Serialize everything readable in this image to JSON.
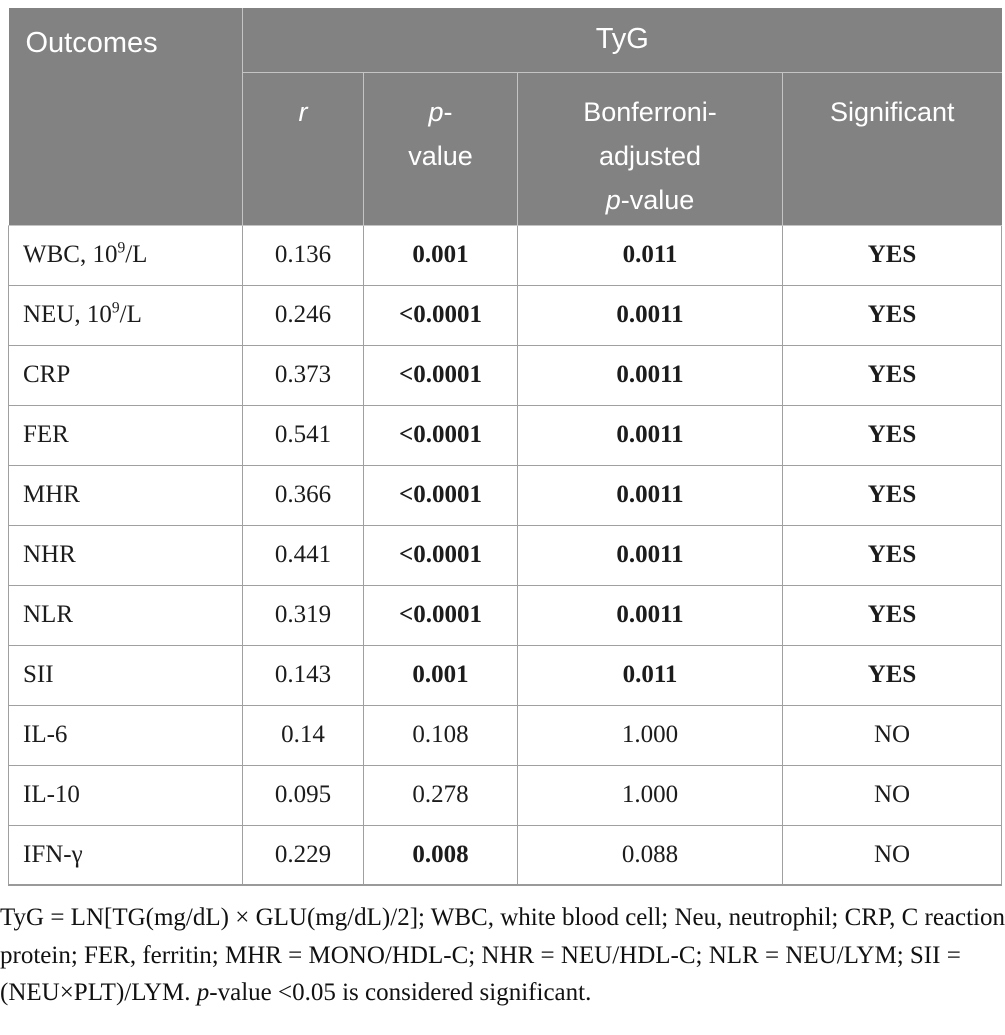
{
  "table": {
    "header": {
      "outcomes": "Outcomes",
      "group": "TyG",
      "r_label": "r",
      "p_line1_italic": "p",
      "p_line1_rest": "-",
      "p_line2": "value",
      "bonferroni_line1": "Bonferroni-",
      "bonferroni_line2": "adjusted",
      "bonferroni_p_italic": "p",
      "bonferroni_p_rest": "-value",
      "significant": "Significant"
    },
    "rows": [
      {
        "outcome": "WBC, 10⁹/L",
        "r": "0.136",
        "p": "0.001",
        "p_bold": true,
        "bonferroni": "0.011",
        "bonferroni_bold": true,
        "significant": "YES",
        "significant_bold": true
      },
      {
        "outcome": "NEU, 10⁹/L",
        "r": "0.246",
        "p": "<0.0001",
        "p_bold": true,
        "bonferroni": "0.0011",
        "bonferroni_bold": true,
        "significant": "YES",
        "significant_bold": true
      },
      {
        "outcome": "CRP",
        "r": "0.373",
        "p": "<0.0001",
        "p_bold": true,
        "bonferroni": "0.0011",
        "bonferroni_bold": true,
        "significant": "YES",
        "significant_bold": true
      },
      {
        "outcome": "FER",
        "r": "0.541",
        "p": "<0.0001",
        "p_bold": true,
        "bonferroni": "0.0011",
        "bonferroni_bold": true,
        "significant": "YES",
        "significant_bold": true
      },
      {
        "outcome": "MHR",
        "r": "0.366",
        "p": "<0.0001",
        "p_bold": true,
        "bonferroni": "0.0011",
        "bonferroni_bold": true,
        "significant": "YES",
        "significant_bold": true
      },
      {
        "outcome": "NHR",
        "r": "0.441",
        "p": "<0.0001",
        "p_bold": true,
        "bonferroni": "0.0011",
        "bonferroni_bold": true,
        "significant": "YES",
        "significant_bold": true
      },
      {
        "outcome": "NLR",
        "r": "0.319",
        "p": "<0.0001",
        "p_bold": true,
        "bonferroni": "0.0011",
        "bonferroni_bold": true,
        "significant": "YES",
        "significant_bold": true
      },
      {
        "outcome": "SII",
        "r": "0.143",
        "p": "0.001",
        "p_bold": true,
        "bonferroni": "0.011",
        "bonferroni_bold": true,
        "significant": "YES",
        "significant_bold": true
      },
      {
        "outcome": "IL-6",
        "r": "0.14",
        "p": "0.108",
        "p_bold": false,
        "bonferroni": "1.000",
        "bonferroni_bold": false,
        "significant": "NO",
        "significant_bold": false
      },
      {
        "outcome": "IL-10",
        "r": "0.095",
        "p": "0.278",
        "p_bold": false,
        "bonferroni": "1.000",
        "bonferroni_bold": false,
        "significant": "NO",
        "significant_bold": false
      },
      {
        "outcome": "IFN-γ",
        "r": "0.229",
        "p": "0.008",
        "p_bold": true,
        "bonferroni": "0.088",
        "bonferroni_bold": false,
        "significant": "NO",
        "significant_bold": false
      }
    ]
  },
  "footnote": {
    "part1": "TyG = LN[TG(mg/dL) × GLU(mg/dL)/2]; WBC, white blood cell; Neu, neutrophil; CRP, C reaction protein; FER, ferritin; MHR = MONO/HDL-C; NHR = NEU/HDL-C; NLR = NEU/LYM; SII = (NEU×PLT)/LYM. ",
    "p_italic": "p",
    "part2": "-value <0.05 is considered significant."
  },
  "colors": {
    "header_bg": "#828282",
    "header_text": "#ffffff",
    "header_divider": "#c4c4c4",
    "body_border": "#a0a0a0",
    "body_text": "#1c1c1c"
  }
}
